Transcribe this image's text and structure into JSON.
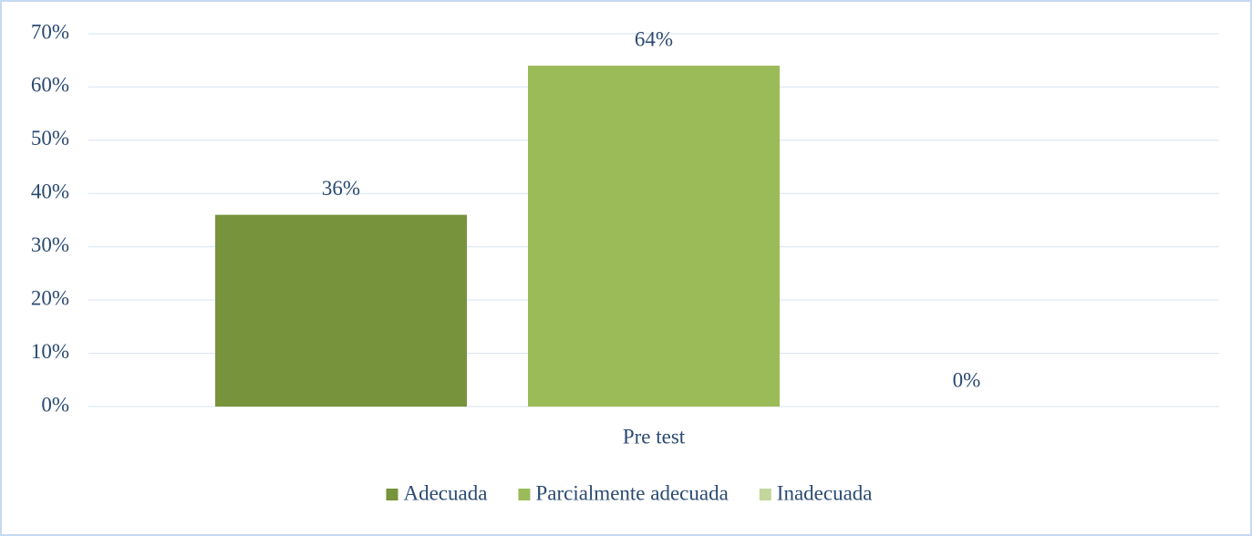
{
  "chart_data": {
    "type": "bar",
    "categories": [
      "Pre test"
    ],
    "series": [
      {
        "name": "Adecuada",
        "color": "#77933c",
        "values": [
          36
        ],
        "value_labels": [
          "36%"
        ]
      },
      {
        "name": "Parcialmente adecuada",
        "color": "#9bbb59",
        "values": [
          64
        ],
        "value_labels": [
          "64%"
        ]
      },
      {
        "name": "Inadecuada",
        "color": "#c3d69b",
        "values": [
          0
        ],
        "value_labels": [
          "0%"
        ]
      }
    ],
    "ylim": [
      0,
      70
    ],
    "yticks": [
      {
        "value": 0,
        "label": "0%"
      },
      {
        "value": 10,
        "label": "10%"
      },
      {
        "value": 20,
        "label": "20%"
      },
      {
        "value": 30,
        "label": "30%"
      },
      {
        "value": 40,
        "label": "40%"
      },
      {
        "value": 50,
        "label": "50%"
      },
      {
        "value": 60,
        "label": "60%"
      },
      {
        "value": 70,
        "label": "70%"
      }
    ],
    "grid": true,
    "legend": "bottom"
  }
}
